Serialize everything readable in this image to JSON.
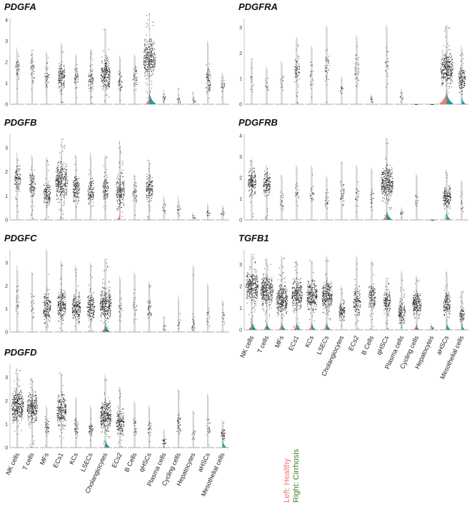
{
  "chart_data": {
    "type": "violin",
    "categories": [
      "NK cells",
      "T cells",
      "MFs",
      "ECs1",
      "KCs",
      "LSECs",
      "Cholangiocytes",
      "ECs2",
      "B Cells",
      "qHSCs",
      "Plasma cells",
      "Cycling cells",
      "Hepatocytes",
      "aHSCs",
      "Mesothelial cells"
    ],
    "legend": {
      "right_label": "Right: Cirrhosis",
      "left_label": "Left: Healthy",
      "right_color": "#3f7f2a",
      "left_color": "#f0736f"
    },
    "colors": {
      "healthy": "#f07a72",
      "cirrhosis": "#1f9ea0",
      "points": "#111111",
      "outline": "#bdbdbd"
    },
    "panels": [
      {
        "title": "PDGFA",
        "ylim": [
          0,
          4
        ],
        "yticks": [
          "0",
          "1",
          "2",
          "3",
          "4"
        ],
        "healthy_max": [
          2.7,
          2.6,
          2.5,
          2.9,
          2.4,
          2.6,
          3.6,
          2.3,
          2.4,
          2.5,
          0.7,
          0.8,
          0.6,
          3.0,
          1.5
        ],
        "cirrhosis_max": [
          2.5,
          2.4,
          2.4,
          2.8,
          2.3,
          2.5,
          3.6,
          2.2,
          2.3,
          4.3,
          0.5,
          0.5,
          0.4,
          2.9,
          1.4
        ],
        "median": [
          1.7,
          1.6,
          1.3,
          1.3,
          1.3,
          1.2,
          1.4,
          1.1,
          1.3,
          2.2,
          0.3,
          0.2,
          0.2,
          1.2,
          0.9
        ],
        "density": [
          0.1,
          0.1,
          0.1,
          0.4,
          0.1,
          0.2,
          0.7,
          0.1,
          0.1,
          1.0,
          0.02,
          0.02,
          0.01,
          0.2,
          0.05
        ],
        "foot_healthy": [
          0,
          0,
          0,
          0,
          0,
          0,
          0,
          0,
          0,
          0.5,
          0,
          0,
          0,
          0,
          0
        ],
        "foot_cirrhosis": [
          0,
          0,
          0,
          0,
          0,
          0,
          0,
          0,
          0,
          0.9,
          0,
          0,
          0,
          0,
          0
        ]
      },
      {
        "title": "PDGFB",
        "ylim": [
          0,
          3.5
        ],
        "yticks": [
          "0",
          "1",
          "2",
          "3"
        ],
        "healthy_max": [
          2.8,
          2.7,
          2.6,
          2.8,
          2.7,
          2.8,
          2.7,
          3.3,
          1.9,
          2.5,
          1.0,
          1.0,
          0.3,
          0.7,
          0.6
        ],
        "cirrhosis_max": [
          2.6,
          2.6,
          2.5,
          3.4,
          2.6,
          2.6,
          2.6,
          3.1,
          1.8,
          2.4,
          0.9,
          0.8,
          0.2,
          0.6,
          0.5
        ],
        "median": [
          1.7,
          1.5,
          1.1,
          1.6,
          1.3,
          1.2,
          1.3,
          1.2,
          1.1,
          1.3,
          0.5,
          0.4,
          0.1,
          0.3,
          0.3
        ],
        "density": [
          0.3,
          0.3,
          0.4,
          1.0,
          0.4,
          0.3,
          0.3,
          0.6,
          0.1,
          0.4,
          0.02,
          0.02,
          0.01,
          0.02,
          0.02
        ],
        "foot_healthy": [
          0,
          0,
          0,
          0,
          0,
          0,
          0,
          0.4,
          0,
          0,
          0,
          0,
          0,
          0,
          0
        ],
        "foot_cirrhosis": [
          0,
          0,
          0,
          0,
          0,
          0,
          0,
          0,
          0,
          0,
          0,
          0,
          0,
          0,
          0
        ]
      },
      {
        "title": "PDGFC",
        "ylim": [
          0,
          3.5
        ],
        "yticks": [
          "0",
          "1",
          "2",
          "3"
        ],
        "healthy_max": [
          2.9,
          2.6,
          3.6,
          3.1,
          2.9,
          3.0,
          3.2,
          2.4,
          2.6,
          2.2,
          0.7,
          1.6,
          2.9,
          2.1,
          1.4
        ],
        "cirrhosis_max": [
          2.7,
          2.5,
          3.5,
          3.0,
          2.8,
          2.9,
          3.1,
          2.3,
          2.5,
          2.1,
          0.6,
          1.4,
          2.8,
          2.0,
          1.3
        ],
        "median": [
          1.4,
          1.2,
          1.1,
          1.2,
          1.1,
          1.1,
          1.2,
          1.1,
          1.1,
          1.0,
          0.2,
          0.4,
          0.3,
          0.7,
          0.6
        ],
        "density": [
          0.05,
          0.05,
          0.5,
          0.6,
          0.6,
          0.5,
          0.9,
          0.05,
          0.05,
          0.1,
          0.01,
          0.01,
          0.05,
          0.03,
          0.02
        ],
        "foot_healthy": [
          0,
          0,
          0,
          0,
          0,
          0,
          0.5,
          0,
          0,
          0,
          0,
          0,
          0,
          0,
          0
        ],
        "foot_cirrhosis": [
          0,
          0,
          0,
          0,
          0,
          0,
          0.6,
          0,
          0,
          0,
          0,
          0,
          0,
          0,
          0
        ]
      },
      {
        "title": "PDGFD",
        "ylim": [
          0,
          3.5
        ],
        "yticks": [
          "0",
          "1",
          "2",
          "3"
        ],
        "healthy_max": [
          3.4,
          3.0,
          1.8,
          3.2,
          2.2,
          1.8,
          3.1,
          2.6,
          2.0,
          1.8,
          0.8,
          2.5,
          1.6,
          2.3,
          1.2
        ],
        "cirrhosis_max": [
          3.2,
          2.9,
          1.7,
          3.1,
          2.1,
          1.7,
          3.0,
          2.5,
          1.9,
          1.7,
          0.7,
          2.4,
          1.5,
          2.2,
          1.1
        ],
        "median": [
          1.8,
          1.7,
          0.9,
          1.6,
          0.9,
          0.8,
          1.4,
          1.1,
          0.9,
          0.8,
          0.3,
          1.0,
          0.5,
          0.9,
          0.6
        ],
        "density": [
          1.0,
          0.8,
          0.1,
          0.7,
          0.1,
          0.1,
          0.9,
          0.5,
          0.05,
          0.05,
          0.05,
          0.1,
          0.02,
          0.05,
          0.1
        ],
        "foot_healthy": [
          0,
          0,
          0,
          0,
          0,
          0,
          0.2,
          0,
          0,
          0,
          0,
          0,
          0,
          0,
          0
        ],
        "foot_cirrhosis": [
          0,
          0,
          0,
          0,
          0,
          0,
          0.6,
          0,
          0,
          0,
          0,
          0,
          0,
          0,
          0.5
        ]
      },
      {
        "title": "PDGFRA",
        "ylim": [
          0,
          3.3
        ],
        "yticks": [
          "0",
          "1",
          "2",
          "3"
        ],
        "healthy_max": [
          1.8,
          1.5,
          1.7,
          2.6,
          2.3,
          3.1,
          1.1,
          2.7,
          0.4,
          3.1,
          0.6,
          0,
          0,
          3.1,
          2.3
        ],
        "cirrhosis_max": [
          1.7,
          1.4,
          1.6,
          2.6,
          2.2,
          3.0,
          1.0,
          2.6,
          0.3,
          3.0,
          0.5,
          0,
          0,
          3.1,
          2.2
        ],
        "median": [
          1.0,
          0.8,
          0.9,
          1.3,
          1.2,
          1.5,
          0.6,
          1.3,
          0.2,
          1.6,
          0.3,
          0,
          0,
          1.4,
          1.0
        ],
        "density": [
          0.02,
          0.02,
          0.02,
          0.2,
          0.05,
          0.1,
          0.02,
          0.1,
          0.01,
          0.05,
          0.01,
          0,
          0,
          1.0,
          0.4
        ],
        "foot_healthy": [
          0,
          0,
          0,
          0,
          0,
          0,
          0,
          0,
          0,
          0,
          0,
          0,
          0,
          1.0,
          0
        ],
        "foot_cirrhosis": [
          0,
          0,
          0,
          0,
          0,
          0,
          0,
          0,
          0,
          0,
          0,
          0,
          0,
          0.9,
          0.5
        ]
      },
      {
        "title": "PDGFRB",
        "ylim": [
          0,
          4
        ],
        "yticks": [
          "0",
          "1",
          "2",
          "3",
          "4"
        ],
        "healthy_max": [
          2.9,
          2.6,
          2.1,
          2.6,
          2.6,
          2.1,
          2.8,
          2.6,
          2.5,
          3.9,
          0.6,
          2.2,
          0,
          2.4,
          1.9
        ],
        "cirrhosis_max": [
          2.8,
          2.5,
          2.0,
          2.5,
          2.5,
          2.0,
          2.7,
          2.5,
          2.4,
          3.9,
          0.5,
          2.1,
          0,
          2.3,
          1.8
        ],
        "median": [
          1.8,
          1.7,
          0.9,
          1.2,
          1.3,
          1.0,
          1.3,
          1.2,
          1.1,
          1.8,
          0.3,
          1.0,
          0,
          1.1,
          0.9
        ],
        "density": [
          0.5,
          0.4,
          0.05,
          0.05,
          0.05,
          0.05,
          0.1,
          0.05,
          0.05,
          1.0,
          0.01,
          0.02,
          0,
          0.5,
          0.02
        ],
        "foot_healthy": [
          0,
          0,
          0,
          0,
          0,
          0,
          0,
          0,
          0,
          0.5,
          0,
          0,
          0,
          0,
          0
        ],
        "foot_cirrhosis": [
          0,
          0,
          0,
          0,
          0,
          0,
          0,
          0,
          0,
          0.7,
          0,
          0,
          0,
          0.5,
          0
        ]
      },
      {
        "title": "TGFB1",
        "ylim": [
          0,
          3.6
        ],
        "yticks": [
          "0",
          "1",
          "2",
          "3"
        ],
        "healthy_max": [
          3.5,
          3.3,
          3.4,
          3.2,
          3.2,
          3.4,
          2.0,
          3.4,
          3.2,
          2.4,
          2.7,
          2.5,
          0.3,
          2.7,
          1.8
        ],
        "cirrhosis_max": [
          3.4,
          3.2,
          3.3,
          3.1,
          3.1,
          3.3,
          1.9,
          3.3,
          3.1,
          2.3,
          2.6,
          2.4,
          0.2,
          2.6,
          1.7
        ],
        "median": [
          2.0,
          1.8,
          1.4,
          1.6,
          1.6,
          1.6,
          0.9,
          1.3,
          1.5,
          1.3,
          0.8,
          1.2,
          0.1,
          1.2,
          0.7
        ],
        "density": [
          1.0,
          1.0,
          0.9,
          0.8,
          0.8,
          0.8,
          0.3,
          0.4,
          0.4,
          0.4,
          0.4,
          0.6,
          0.01,
          0.4,
          0.2
        ],
        "foot_healthy": [
          0.4,
          0.4,
          0.4,
          0.4,
          0.4,
          0.4,
          0,
          0,
          0,
          0,
          0,
          0.4,
          0,
          0.2,
          0
        ],
        "foot_cirrhosis": [
          0.6,
          0.5,
          0.5,
          0.5,
          0.5,
          0.5,
          0,
          0,
          0,
          0,
          0,
          0.3,
          0,
          0.5,
          0.4
        ]
      }
    ]
  }
}
